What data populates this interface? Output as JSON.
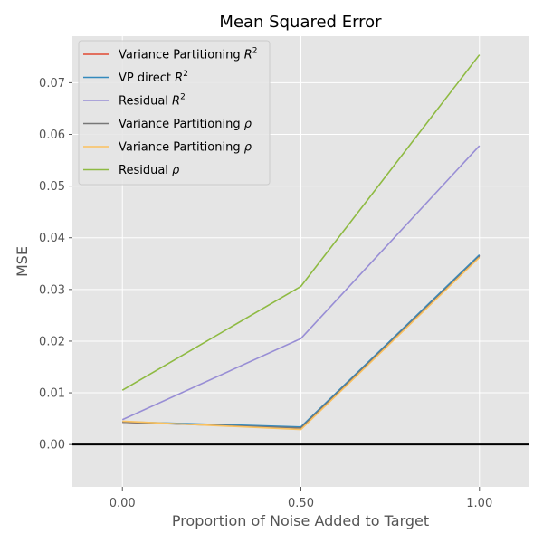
{
  "chart_data": {
    "type": "line",
    "title": "Mean Squared Error",
    "xlabel": "Proportion of Noise Added to Target",
    "ylabel": "MSE",
    "x": [
      0.0,
      0.5,
      1.0
    ],
    "x_ticks": [
      "0.00",
      "0.50",
      "1.00"
    ],
    "xlim": [
      -0.14,
      1.14
    ],
    "y_ticks": [
      "0.00",
      "0.01",
      "0.02",
      "0.03",
      "0.04",
      "0.05",
      "0.06",
      "0.07"
    ],
    "ylim": [
      -0.0082,
      0.079
    ],
    "grid": true,
    "legend_position": "top-left",
    "zero_line": true,
    "series": [
      {
        "name": "Variance Partitioning R2",
        "label_main": "Variance Partitioning ",
        "label_super": "2",
        "label_italic": "R",
        "color": "#E24A33",
        "values": [
          0.0043,
          0.0033,
          0.0366
        ]
      },
      {
        "name": "VP direct R2",
        "label_main": "VP direct ",
        "label_super": "2",
        "label_italic": "R",
        "color": "#348ABD",
        "values": [
          0.0044,
          0.0034,
          0.0367
        ]
      },
      {
        "name": "Residual R2",
        "label_main": "Residual ",
        "label_super": "2",
        "label_italic": "R",
        "color": "#988ED5",
        "values": [
          0.0048,
          0.0205,
          0.0578
        ]
      },
      {
        "name": "Variance Partitioning ρ",
        "label_main": "Variance Partitioning ",
        "label_super": "",
        "label_italic": "ρ",
        "color": "#777777",
        "values": [
          0.0043,
          0.0032,
          0.0364
        ]
      },
      {
        "name": "Variance Partitioning ρ",
        "label_main": "Variance Partitioning ",
        "label_super": "",
        "label_italic": "ρ",
        "color": "#FBC15E",
        "values": [
          0.0045,
          0.0029,
          0.0362
        ]
      },
      {
        "name": "Residual ρ",
        "label_main": "Residual ",
        "label_super": "",
        "label_italic": "ρ",
        "color": "#8EBA42",
        "values": [
          0.0105,
          0.0306,
          0.0754
        ]
      }
    ]
  }
}
